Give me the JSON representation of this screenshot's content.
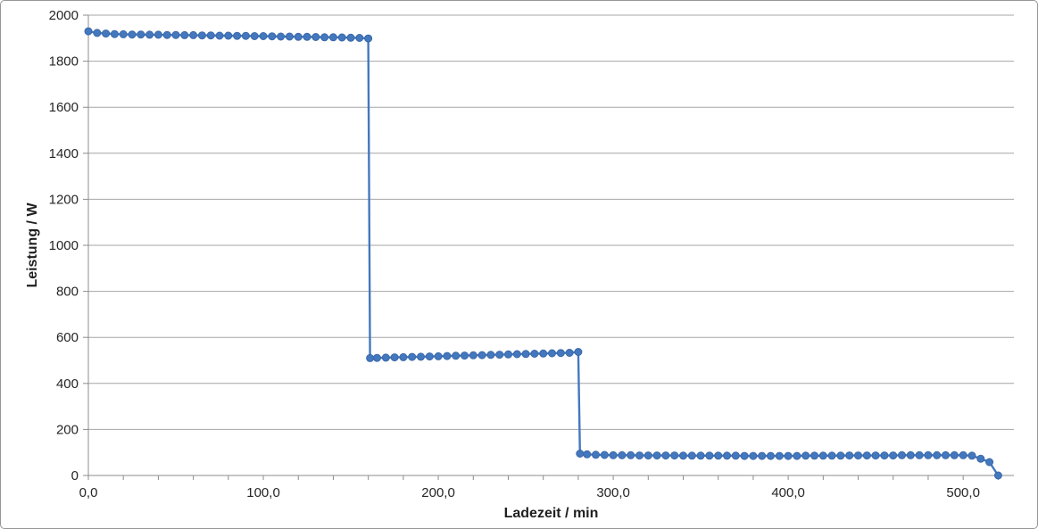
{
  "chart_data": {
    "type": "line",
    "title": "",
    "xlabel": "Ladezeit / min",
    "ylabel": "Leistung / W",
    "xlim": [
      0,
      529
    ],
    "ylim": [
      0,
      2000
    ],
    "grid": "horizontal",
    "legend": "none",
    "x_major_ticks": [
      {
        "value": 0,
        "label": "0,0"
      },
      {
        "value": 100,
        "label": "100,0"
      },
      {
        "value": 200,
        "label": "200,0"
      },
      {
        "value": 300,
        "label": "300,0"
      },
      {
        "value": 400,
        "label": "400,0"
      },
      {
        "value": 500,
        "label": "500,0"
      }
    ],
    "x_minor_tick_step": 20,
    "x_minor_tick_max": 520,
    "y_ticks": [
      0,
      200,
      400,
      600,
      800,
      1000,
      1200,
      1400,
      1600,
      1800,
      2000
    ],
    "series": [
      {
        "name": "Leistung",
        "marker": "circle",
        "points": [
          [
            0,
            1930
          ],
          [
            5,
            1923
          ],
          [
            10,
            1920
          ],
          [
            15,
            1918
          ],
          [
            20,
            1917
          ],
          [
            25,
            1916
          ],
          [
            30,
            1916
          ],
          [
            35,
            1915
          ],
          [
            40,
            1915
          ],
          [
            45,
            1914
          ],
          [
            50,
            1914
          ],
          [
            55,
            1913
          ],
          [
            60,
            1913
          ],
          [
            65,
            1912
          ],
          [
            70,
            1912
          ],
          [
            75,
            1911
          ],
          [
            80,
            1911
          ],
          [
            85,
            1910
          ],
          [
            90,
            1910
          ],
          [
            95,
            1909
          ],
          [
            100,
            1909
          ],
          [
            105,
            1908
          ],
          [
            110,
            1907
          ],
          [
            115,
            1907
          ],
          [
            120,
            1906
          ],
          [
            125,
            1906
          ],
          [
            130,
            1905
          ],
          [
            135,
            1904
          ],
          [
            140,
            1904
          ],
          [
            145,
            1903
          ],
          [
            150,
            1902
          ],
          [
            155,
            1901
          ],
          [
            160,
            1899
          ],
          [
            161,
            510
          ],
          [
            165,
            511
          ],
          [
            170,
            512
          ],
          [
            175,
            513
          ],
          [
            180,
            514
          ],
          [
            185,
            515
          ],
          [
            190,
            516
          ],
          [
            195,
            517
          ],
          [
            200,
            518
          ],
          [
            205,
            519
          ],
          [
            210,
            520
          ],
          [
            215,
            521
          ],
          [
            220,
            522
          ],
          [
            225,
            523
          ],
          [
            230,
            524
          ],
          [
            235,
            525
          ],
          [
            240,
            526
          ],
          [
            245,
            527
          ],
          [
            250,
            528
          ],
          [
            255,
            529
          ],
          [
            260,
            530
          ],
          [
            265,
            531
          ],
          [
            270,
            532
          ],
          [
            275,
            533
          ],
          [
            280,
            537
          ],
          [
            281,
            95
          ],
          [
            285,
            92
          ],
          [
            290,
            90
          ],
          [
            295,
            89
          ],
          [
            300,
            88
          ],
          [
            305,
            88
          ],
          [
            310,
            88
          ],
          [
            315,
            87
          ],
          [
            320,
            87
          ],
          [
            325,
            87
          ],
          [
            330,
            87
          ],
          [
            335,
            87
          ],
          [
            340,
            86
          ],
          [
            345,
            86
          ],
          [
            350,
            86
          ],
          [
            355,
            86
          ],
          [
            360,
            86
          ],
          [
            365,
            86
          ],
          [
            370,
            86
          ],
          [
            375,
            85
          ],
          [
            380,
            85
          ],
          [
            385,
            85
          ],
          [
            390,
            85
          ],
          [
            395,
            85
          ],
          [
            400,
            85
          ],
          [
            405,
            85
          ],
          [
            410,
            86
          ],
          [
            415,
            86
          ],
          [
            420,
            86
          ],
          [
            425,
            86
          ],
          [
            430,
            86
          ],
          [
            435,
            87
          ],
          [
            440,
            87
          ],
          [
            445,
            87
          ],
          [
            450,
            87
          ],
          [
            455,
            87
          ],
          [
            460,
            87
          ],
          [
            465,
            88
          ],
          [
            470,
            88
          ],
          [
            475,
            88
          ],
          [
            480,
            88
          ],
          [
            485,
            88
          ],
          [
            490,
            88
          ],
          [
            495,
            88
          ],
          [
            500,
            88
          ],
          [
            505,
            86
          ],
          [
            510,
            73
          ],
          [
            515,
            58
          ],
          [
            520,
            0
          ]
        ]
      }
    ]
  },
  "style": {
    "series_color": "#4478BE",
    "marker_edge_color": "#3A68A8",
    "gridline_color": "#A6A6A6",
    "axis_color": "#8C8C8C",
    "tick_label_color": "#262626",
    "title_color": "#1F1F1F",
    "background": "#FFFFFF",
    "border_color": "#969696"
  }
}
